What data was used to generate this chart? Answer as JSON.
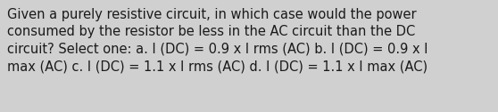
{
  "text": "Given a purely resistive circuit, in which case would the power\nconsumed by the resistor be less in the AC circuit than the DC\ncircuit? Select one: a. I (DC) = 0.9 x I rms (AC) b. I (DC) = 0.9 x I\nmax (AC) c. I (DC) = 1.1 x I rms (AC) d. I (DC) = 1.1 x I max (AC)",
  "background_color": "#d0d0d0",
  "text_color": "#1a1a1a",
  "font_size": 10.5,
  "fig_width": 5.58,
  "fig_height": 1.26,
  "dpi": 100
}
